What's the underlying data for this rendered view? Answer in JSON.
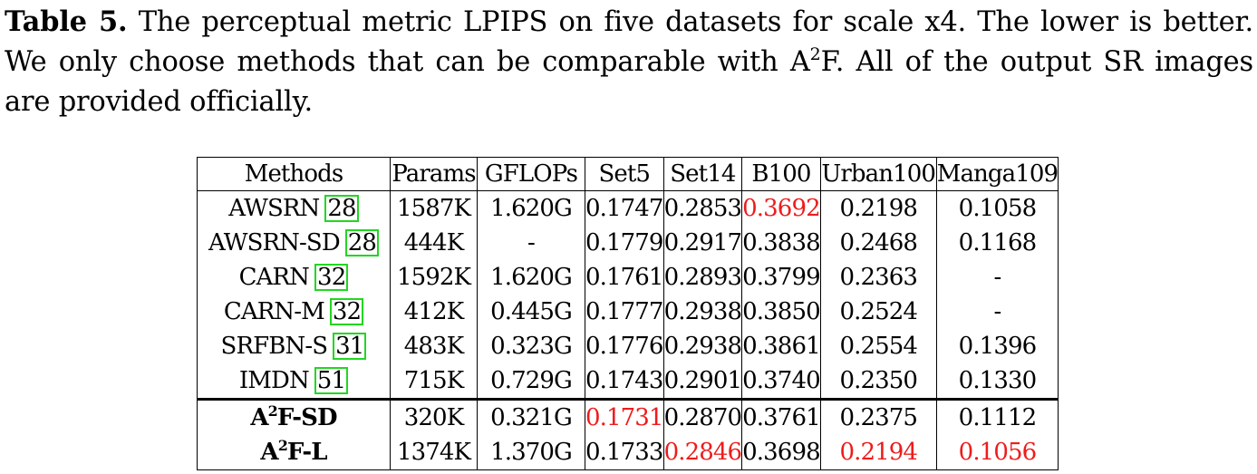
{
  "caption": {
    "label": "Table 5.",
    "text_before_sup": " The perceptual metric LPIPS on five datasets for scale x4. The lower is better. We only choose methods that can be comparable with A",
    "sup": "2",
    "text_after_sup": "F. All of the output SR images are provided officially."
  },
  "table": {
    "headers": [
      "Methods",
      "Params",
      "GFLOPs",
      "Set5",
      "Set14",
      "B100",
      "Urban100",
      "Manga109"
    ],
    "rows": [
      {
        "method": "AWSRN",
        "ref": "28",
        "params": "1587K",
        "gflops": "1.620G",
        "set5": "0.1747",
        "set14": "0.2853",
        "b100": "0.3692",
        "urban100": "0.2198",
        "manga109": "0.1058"
      },
      {
        "method": "AWSRN-SD",
        "ref": "28",
        "params": "444K",
        "gflops": "-",
        "set5": "0.1779",
        "set14": "0.2917",
        "b100": "0.3838",
        "urban100": "0.2468",
        "manga109": "0.1168"
      },
      {
        "method": "CARN",
        "ref": "32",
        "params": "1592K",
        "gflops": "1.620G",
        "set5": "0.1761",
        "set14": "0.2893",
        "b100": "0.3799",
        "urban100": "0.2363",
        "manga109": "-"
      },
      {
        "method": "CARN-M",
        "ref": "32",
        "params": "412K",
        "gflops": "0.445G",
        "set5": "0.1777",
        "set14": "0.2938",
        "b100": "0.3850",
        "urban100": "0.2524",
        "manga109": "-"
      },
      {
        "method": "SRFBN-S",
        "ref": "31",
        "params": "483K",
        "gflops": "0.323G",
        "set5": "0.1776",
        "set14": "0.2938",
        "b100": "0.3861",
        "urban100": "0.2554",
        "manga109": "0.1396"
      },
      {
        "method": "IMDN",
        "ref": "51",
        "params": "715K",
        "gflops": "0.729G",
        "set5": "0.1743",
        "set14": "0.2901",
        "b100": "0.3740",
        "urban100": "0.2350",
        "manga109": "0.1330"
      },
      {
        "method_pre": "A",
        "method_sup": "2",
        "method_post": "F-SD",
        "params": "320K",
        "gflops": "0.321G",
        "set5": "0.1731",
        "set14": "0.2870",
        "b100": "0.3761",
        "urban100": "0.2375",
        "manga109": "0.1112"
      },
      {
        "method_pre": "A",
        "method_sup": "2",
        "method_post": "F-L",
        "params": "1374K",
        "gflops": "1.370G",
        "set5": "0.1733",
        "set14": "0.2846",
        "b100": "0.3698",
        "urban100": "0.2194",
        "manga109": "0.1056"
      }
    ],
    "best_color": "#ee1c1c",
    "ref_box_color": "#22d622"
  }
}
